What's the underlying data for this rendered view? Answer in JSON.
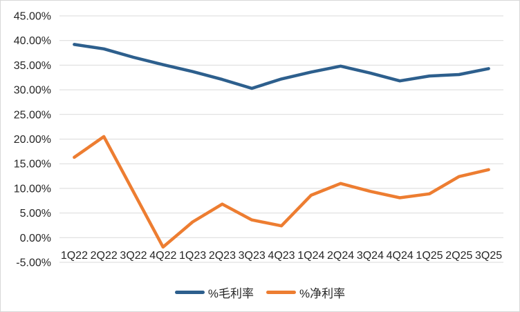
{
  "chart_data": {
    "type": "line",
    "title": "",
    "xlabel": "",
    "ylabel": "",
    "categories": [
      "1Q22",
      "2Q22",
      "3Q22",
      "4Q22",
      "1Q23",
      "2Q23",
      "3Q23",
      "4Q23",
      "1Q24",
      "2Q24",
      "3Q24",
      "4Q24",
      "1Q25",
      "2Q25",
      "3Q25"
    ],
    "series": [
      {
        "name": "%毛利率",
        "color": "#2D5F8D",
        "values": [
          39.2,
          38.3,
          36.6,
          35.1,
          33.7,
          32.1,
          30.3,
          32.2,
          33.6,
          34.8,
          33.4,
          31.8,
          32.8,
          33.1,
          34.3
        ]
      },
      {
        "name": "%净利率",
        "color": "#ED7D31",
        "values": [
          16.3,
          20.5,
          9.3,
          -1.9,
          3.2,
          6.8,
          3.6,
          2.4,
          8.6,
          11.0,
          9.4,
          8.1,
          8.9,
          12.4,
          13.8
        ]
      }
    ],
    "ylim": [
      -5,
      45
    ],
    "ytick_step": 5,
    "ytick_labels": [
      "45.00%",
      "40.00%",
      "35.00%",
      "30.00%",
      "25.00%",
      "20.00%",
      "15.00%",
      "10.00%",
      "5.00%",
      "0.00%",
      "-5.00%"
    ],
    "grid": true,
    "legend_position": "bottom"
  },
  "colors": {
    "gridline": "#d9d9d9",
    "axis_text": "#262626",
    "frame_border": "#d7d7d7",
    "background": "#ffffff"
  }
}
